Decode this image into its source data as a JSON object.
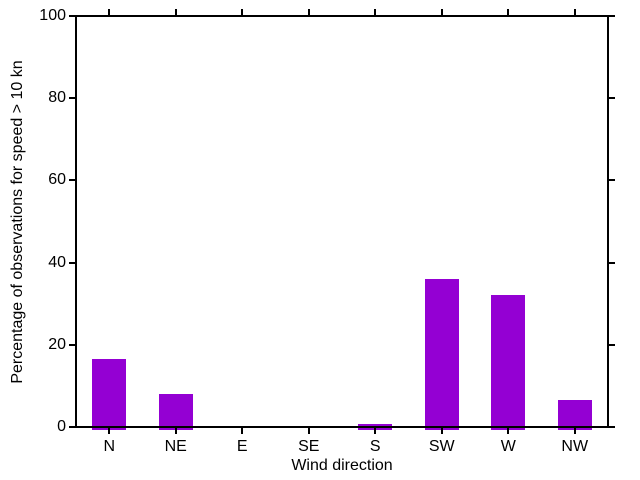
{
  "figure": {
    "background": "#ffffff"
  },
  "chart_data": {
    "type": "bar",
    "categories": [
      "N",
      "NE",
      "E",
      "SE",
      "S",
      "SW",
      "W",
      "NW"
    ],
    "values": [
      16.5,
      8,
      0,
      0,
      0.7,
      36,
      32,
      6.6
    ],
    "title": "",
    "xlabel": "Wind direction",
    "ylabel": "Percentage of observations for speed > 10 kn",
    "ylim": [
      0,
      100
    ],
    "yticks": [
      0,
      20,
      40,
      60,
      80,
      100
    ],
    "bar_color": "#9400d3",
    "axis_color": "#000000",
    "text_color": "#000000",
    "tick_direction": "out",
    "ticks_mirrored_top_right": true,
    "grid": false,
    "legend_position": "none"
  }
}
